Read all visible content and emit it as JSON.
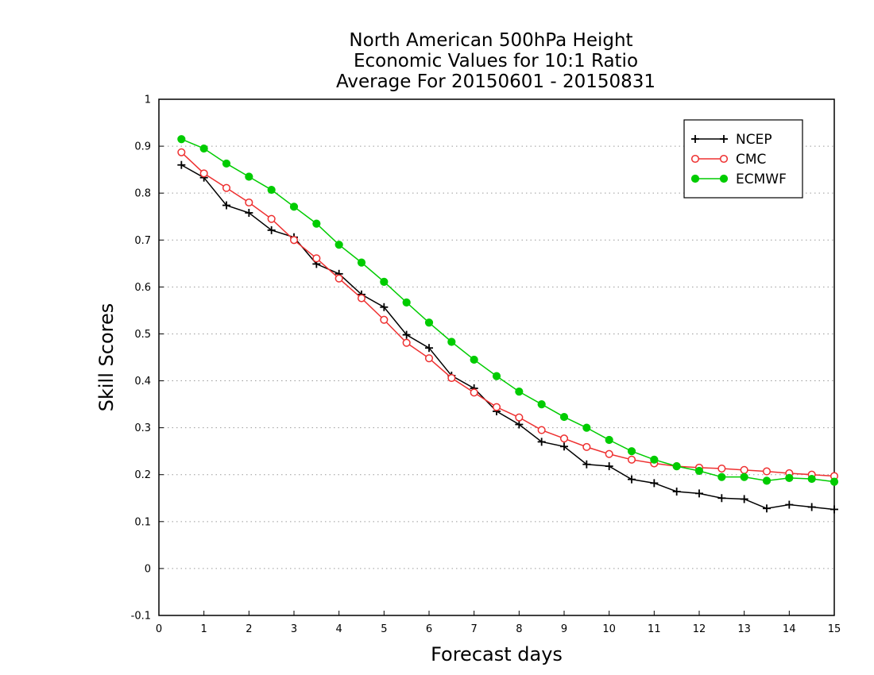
{
  "chart_data": {
    "type": "line",
    "title_lines": [
      "North American 500hPa Height",
      "Economic Values for 10:1 Ratio",
      "Average For 20150601 - 20150831"
    ],
    "xlabel": "Forecast days",
    "ylabel": "Skill Scores",
    "xlim": [
      0,
      15
    ],
    "ylim": [
      -0.1,
      1
    ],
    "xticks": [
      0,
      1,
      2,
      3,
      4,
      5,
      6,
      7,
      8,
      9,
      10,
      11,
      12,
      13,
      14,
      15
    ],
    "xtick_labels": [
      "0",
      "1",
      "2",
      "3",
      "4",
      "5",
      "6",
      "7",
      "8",
      "9",
      "10",
      "11",
      "12",
      "13",
      "14",
      "15"
    ],
    "yticks": [
      -0.1,
      0,
      0.1,
      0.2,
      0.3,
      0.4,
      0.5,
      0.6,
      0.7,
      0.8,
      0.9,
      1
    ],
    "ytick_labels": [
      "-0.1",
      "0",
      "0.1",
      "0.2",
      "0.3",
      "0.4",
      "0.5",
      "0.6",
      "0.7",
      "0.8",
      "0.9",
      "1"
    ],
    "grid": "horizontal dotted",
    "legend_position": "top-right",
    "x": [
      0.5,
      1,
      1.5,
      2,
      2.5,
      3,
      3.5,
      4,
      4.5,
      5,
      5.5,
      6,
      6.5,
      7,
      7.5,
      8,
      8.5,
      9,
      9.5,
      10,
      10.5,
      11,
      11.5,
      12,
      12.5,
      13,
      13.5,
      14,
      14.5,
      15
    ],
    "series": [
      {
        "name": "NCEP",
        "color": "#000000",
        "marker": "plus",
        "values": [
          0.86,
          0.833,
          0.774,
          0.758,
          0.721,
          0.706,
          0.649,
          0.628,
          0.584,
          0.557,
          0.498,
          0.47,
          0.411,
          0.384,
          0.335,
          0.307,
          0.27,
          0.26,
          0.222,
          0.218,
          0.19,
          0.182,
          0.164,
          0.16,
          0.15,
          0.148,
          0.128,
          0.136,
          0.131,
          0.126
        ]
      },
      {
        "name": "CMC",
        "color": "#ee3030",
        "marker": "open-circle",
        "values": [
          0.887,
          0.842,
          0.811,
          0.78,
          0.745,
          0.7,
          0.661,
          0.618,
          0.576,
          0.53,
          0.481,
          0.448,
          0.406,
          0.375,
          0.344,
          0.322,
          0.295,
          0.277,
          0.259,
          0.244,
          0.232,
          0.224,
          0.218,
          0.215,
          0.213,
          0.21,
          0.207,
          0.203,
          0.2,
          0.197
        ]
      },
      {
        "name": "ECMWF",
        "color": "#00cc00",
        "marker": "filled-circle",
        "values": [
          0.915,
          0.895,
          0.863,
          0.835,
          0.807,
          0.771,
          0.735,
          0.69,
          0.652,
          0.611,
          0.567,
          0.524,
          0.483,
          0.445,
          0.41,
          0.377,
          0.35,
          0.323,
          0.3,
          0.274,
          0.25,
          0.232,
          0.218,
          0.208,
          0.195,
          0.195,
          0.187,
          0.193,
          0.191,
          0.185
        ]
      }
    ]
  }
}
